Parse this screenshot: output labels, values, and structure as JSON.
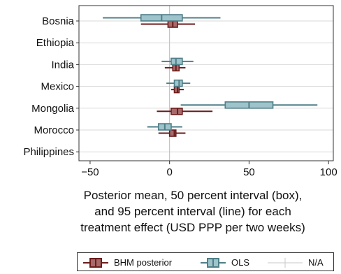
{
  "chart_data": {
    "type": "forest",
    "categories": [
      "Bosnia",
      "Ethiopia",
      "India",
      "Mexico",
      "Mongolia",
      "Morocco",
      "Philippines"
    ],
    "xlabel_lines": [
      "Posterior mean, 50 percent interval (box),",
      "and 95 percent interval (line) for each",
      "treatment effect (USD PPP per two weeks)"
    ],
    "xlim": [
      -57,
      103
    ],
    "xticks": [
      -50,
      0,
      50,
      100
    ],
    "xtick_labels": [
      "−50",
      "0",
      "50",
      "100"
    ],
    "grid": "horizontal",
    "series": [
      {
        "name": "BHM posterior",
        "color": "#6b1c1c",
        "fill": "#a66a6a",
        "points": [
          {
            "category": "Bosnia",
            "mean": 2,
            "q25": -1,
            "q75": 5,
            "lo95": -18,
            "hi95": 16
          },
          {
            "category": "India",
            "mean": 4,
            "q25": 2,
            "q75": 6,
            "lo95": -3,
            "hi95": 10
          },
          {
            "category": "Mexico",
            "mean": 5,
            "q25": 3,
            "q75": 6,
            "lo95": 1,
            "hi95": 9
          },
          {
            "category": "Mongolia",
            "mean": 5,
            "q25": 1,
            "q75": 8,
            "lo95": -8,
            "hi95": 27
          },
          {
            "category": "Morocco",
            "mean": 3,
            "q25": 0,
            "q75": 4,
            "lo95": -7,
            "hi95": 10
          }
        ]
      },
      {
        "name": "OLS",
        "color": "#4f7f88",
        "fill": "#9ec3cb",
        "points": [
          {
            "category": "Bosnia",
            "mean": -5,
            "q25": -18,
            "q75": 8,
            "lo95": -42,
            "hi95": 32
          },
          {
            "category": "India",
            "mean": 4,
            "q25": 1,
            "q75": 8,
            "lo95": -5,
            "hi95": 15
          },
          {
            "category": "Mexico",
            "mean": 6,
            "q25": 3,
            "q75": 8,
            "lo95": -2,
            "hi95": 13
          },
          {
            "category": "Mongolia",
            "mean": 50,
            "q25": 35,
            "q75": 65,
            "lo95": 7,
            "hi95": 93
          },
          {
            "category": "Morocco",
            "mean": -3,
            "q25": -7,
            "q75": 1,
            "lo95": -14,
            "hi95": 8
          }
        ]
      }
    ],
    "legend": {
      "position": "bottom",
      "entries": [
        "BHM posterior",
        "OLS",
        "N/A"
      ]
    }
  }
}
